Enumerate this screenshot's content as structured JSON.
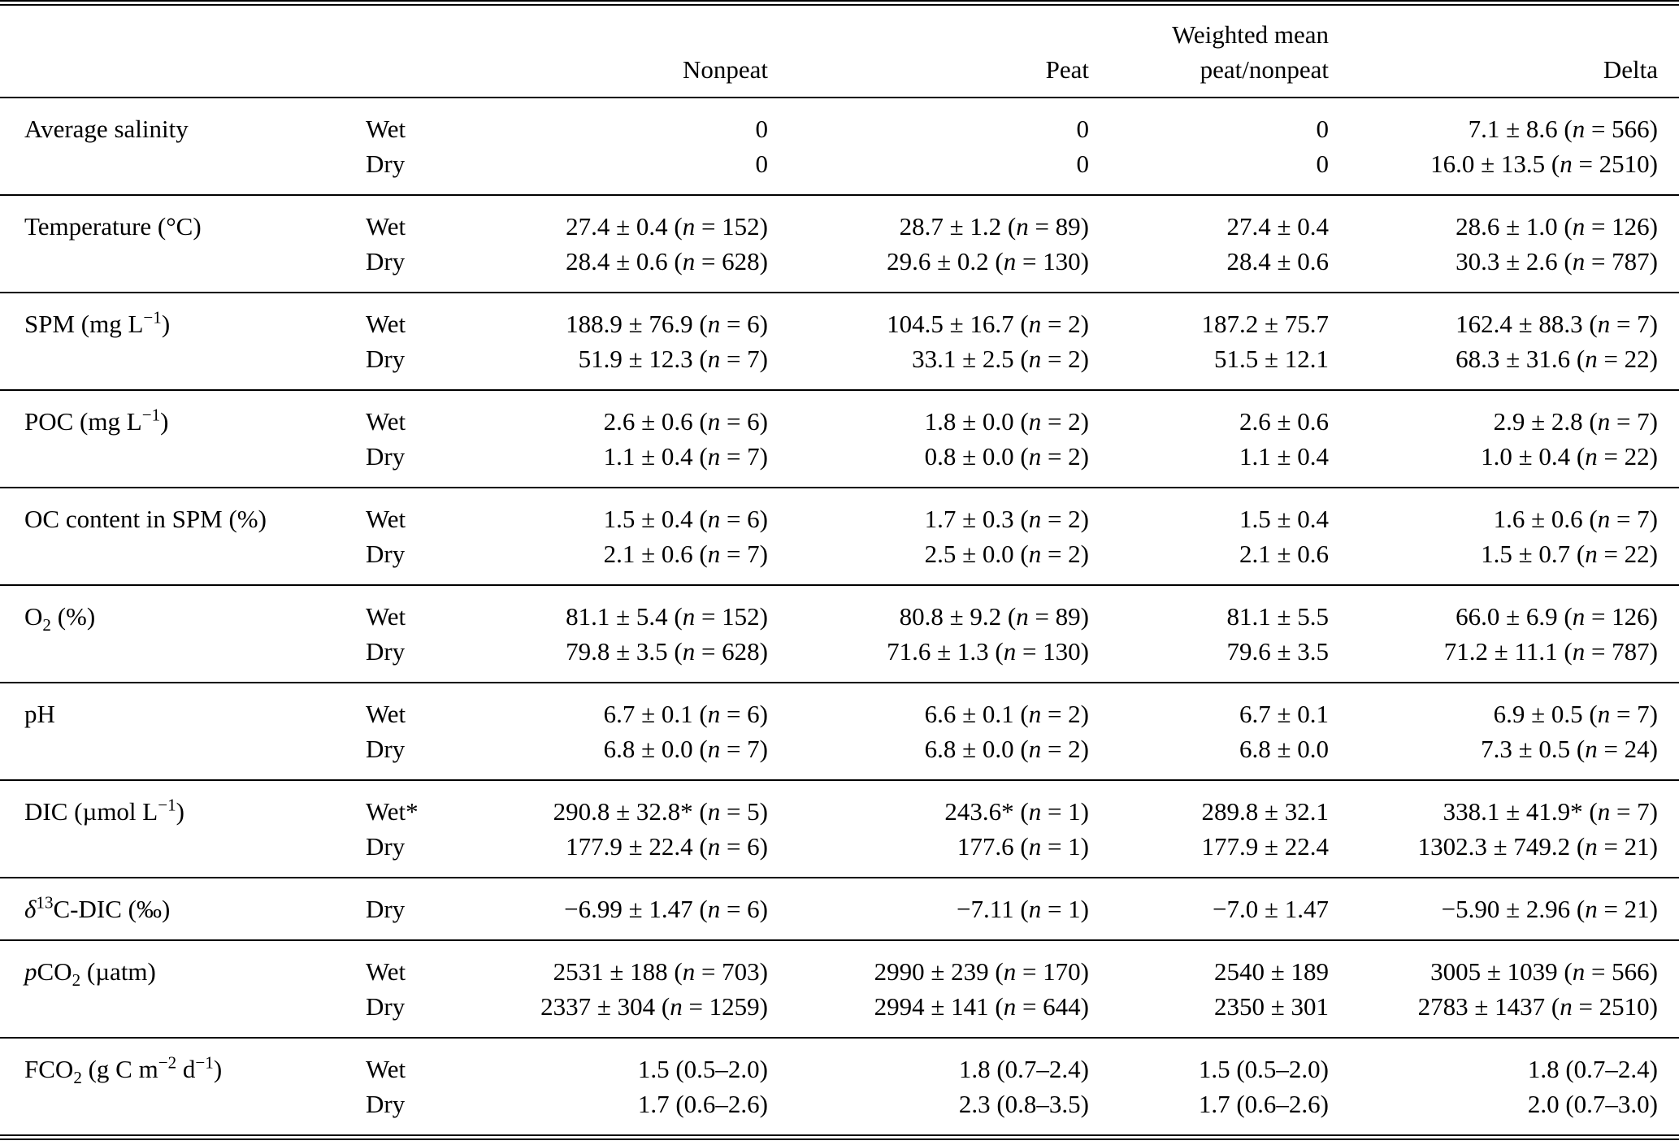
{
  "table": {
    "header": {
      "nonpeat": "Nonpeat",
      "peat": "Peat",
      "weighted_line1": "Weighted mean",
      "weighted_line2": "peat/nonpeat",
      "delta": "Delta"
    },
    "groups": [
      {
        "label": "Average salinity",
        "rows": [
          {
            "season": "Wet",
            "nonpeat": "0",
            "peat": "0",
            "weighted": "0",
            "delta": "7.1 ± 8.6 (_n_ = 566)"
          },
          {
            "season": "Dry",
            "nonpeat": "0",
            "peat": "0",
            "weighted": "0",
            "delta": "16.0 ± 13.5 (_n_ = 2510)"
          }
        ]
      },
      {
        "label": "Temperature (°C)",
        "rows": [
          {
            "season": "Wet",
            "nonpeat": "27.4 ± 0.4 (_n_ = 152)",
            "peat": "28.7 ± 1.2 (_n_ = 89)",
            "weighted": "27.4 ± 0.4",
            "delta": "28.6 ± 1.0 (_n_ = 126)"
          },
          {
            "season": "Dry",
            "nonpeat": "28.4 ± 0.6 (_n_ = 628)",
            "peat": "29.6 ± 0.2 (_n_ = 130)",
            "weighted": "28.4 ± 0.6",
            "delta": "30.3 ± 2.6 (_n_ = 787)"
          }
        ]
      },
      {
        "label": "SPM (mg L^{−1})",
        "rows": [
          {
            "season": "Wet",
            "nonpeat": "188.9 ± 76.9 (_n_ = 6)",
            "peat": "104.5 ± 16.7 (_n_ = 2)",
            "weighted": "187.2 ± 75.7",
            "delta": "162.4 ± 88.3 (_n_ = 7)"
          },
          {
            "season": "Dry",
            "nonpeat": "51.9 ± 12.3 (_n_ = 7)",
            "peat": "33.1 ± 2.5 (_n_ = 2)",
            "weighted": "51.5 ± 12.1",
            "delta": "68.3 ± 31.6 (_n_ = 22)"
          }
        ]
      },
      {
        "label": "POC (mg L^{−1})",
        "rows": [
          {
            "season": "Wet",
            "nonpeat": "2.6 ± 0.6 (_n_ = 6)",
            "peat": "1.8 ± 0.0 (_n_ = 2)",
            "weighted": "2.6 ± 0.6",
            "delta": "2.9 ± 2.8 (_n_ = 7)"
          },
          {
            "season": "Dry",
            "nonpeat": "1.1 ± 0.4 (_n_ = 7)",
            "peat": "0.8 ± 0.0 (_n_ = 2)",
            "weighted": "1.1 ± 0.4",
            "delta": "1.0 ± 0.4 (_n_ = 22)"
          }
        ]
      },
      {
        "label": "OC content in SPM (%)",
        "rows": [
          {
            "season": "Wet",
            "nonpeat": "1.5 ± 0.4 (_n_ = 6)",
            "peat": "1.7 ± 0.3 (_n_ = 2)",
            "weighted": "1.5 ± 0.4",
            "delta": "1.6 ± 0.6 (_n_ = 7)"
          },
          {
            "season": "Dry",
            "nonpeat": "2.1 ± 0.6 (_n_ = 7)",
            "peat": "2.5 ± 0.0 (_n_ = 2)",
            "weighted": "2.1 ± 0.6",
            "delta": "1.5 ± 0.7 (_n_ = 22)"
          }
        ]
      },
      {
        "label": "O~2~ (%)",
        "rows": [
          {
            "season": "Wet",
            "nonpeat": "81.1 ± 5.4 (_n_ = 152)",
            "peat": "80.8 ± 9.2 (_n_ = 89)",
            "weighted": "81.1 ± 5.5",
            "delta": "66.0 ± 6.9 (_n_ = 126)"
          },
          {
            "season": "Dry",
            "nonpeat": "79.8 ± 3.5 (_n_ = 628)",
            "peat": "71.6 ± 1.3 (_n_ = 130)",
            "weighted": "79.6 ± 3.5",
            "delta": "71.2 ± 11.1 (_n_ = 787)"
          }
        ]
      },
      {
        "label": "pH",
        "rows": [
          {
            "season": "Wet",
            "nonpeat": "6.7 ± 0.1 (_n_ = 6)",
            "peat": "6.6 ± 0.1 (_n_ = 2)",
            "weighted": "6.7 ± 0.1",
            "delta": "6.9 ± 0.5 (_n_ = 7)"
          },
          {
            "season": "Dry",
            "nonpeat": "6.8 ± 0.0 (_n_ = 7)",
            "peat": "6.8 ± 0.0 (_n_ = 2)",
            "weighted": "6.8 ± 0.0",
            "delta": "7.3 ± 0.5 (_n_ = 24)"
          }
        ]
      },
      {
        "label": "DIC (µmol L^{−1})",
        "rows": [
          {
            "season": "Wet*",
            "nonpeat": "290.8 ± 32.8* (_n_ = 5)",
            "peat": "243.6* (_n_ = 1)",
            "weighted": "289.8 ± 32.1",
            "delta": "338.1 ± 41.9* (_n_ = 7)"
          },
          {
            "season": "Dry",
            "nonpeat": "177.9 ± 22.4 (_n_ = 6)",
            "peat": "177.6 (_n_ = 1)",
            "weighted": "177.9 ± 22.4",
            "delta": "1302.3 ± 749.2 (_n_ = 21)"
          }
        ]
      },
      {
        "label": "_δ_^{13}C-DIC (‰)",
        "rows": [
          {
            "season": "Dry",
            "nonpeat": "−6.99 ± 1.47 (_n_ = 6)",
            "peat": "−7.11 (_n_ = 1)",
            "weighted": "−7.0 ± 1.47",
            "delta": "−5.90 ± 2.96 (_n_ = 21)"
          }
        ]
      },
      {
        "label": "_p_CO~2~ (µatm)",
        "rows": [
          {
            "season": "Wet",
            "nonpeat": "2531 ± 188 (_n_ = 703)",
            "peat": "2990 ± 239 (_n_ = 170)",
            "weighted": "2540 ± 189",
            "delta": "3005 ± 1039 (_n_ = 566)"
          },
          {
            "season": "Dry",
            "nonpeat": "2337 ± 304 (_n_ = 1259)",
            "peat": "2994 ± 141 (_n_ = 644)",
            "weighted": "2350 ± 301",
            "delta": "2783 ± 1437 (_n_ = 2510)"
          }
        ]
      },
      {
        "label": "FCO~2~ (g C m^{−2} d^{−1})",
        "rows": [
          {
            "season": "Wet",
            "nonpeat": "1.5 (0.5–2.0)",
            "peat": "1.8 (0.7–2.4)",
            "weighted": "1.5 (0.5–2.0)",
            "delta": "1.8 (0.7–2.4)"
          },
          {
            "season": "Dry",
            "nonpeat": "1.7 (0.6–2.6)",
            "peat": "2.3 (0.8–3.5)",
            "weighted": "1.7 (0.6–2.6)",
            "delta": "2.0 (0.7–3.0)"
          }
        ]
      }
    ]
  }
}
